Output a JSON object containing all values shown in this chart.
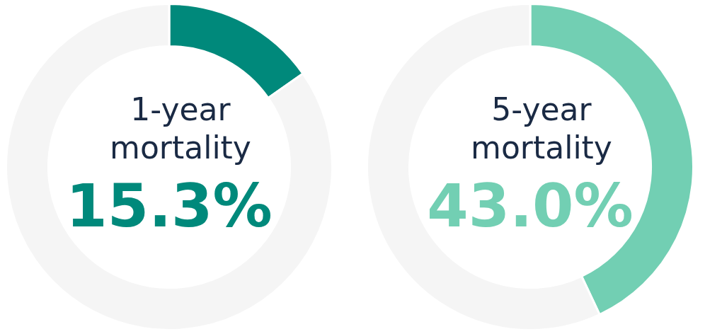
{
  "chart_data": [
    {
      "type": "donut",
      "title": "1-year mortality",
      "categories": [
        null,
        null
      ],
      "values": [
        15.3,
        84.7
      ],
      "colors": [
        "#00897b",
        "#f5f5f5"
      ],
      "annotations": [
        "15.3%"
      ],
      "legend": false
    },
    {
      "type": "donut",
      "title": "5-year mortality",
      "categories": [
        null,
        null
      ],
      "values": [
        43.0,
        57.0
      ],
      "colors": [
        "#72cfb3",
        "#f5f5f5"
      ],
      "annotations": [
        "43.0%"
      ],
      "legend": false
    }
  ]
}
